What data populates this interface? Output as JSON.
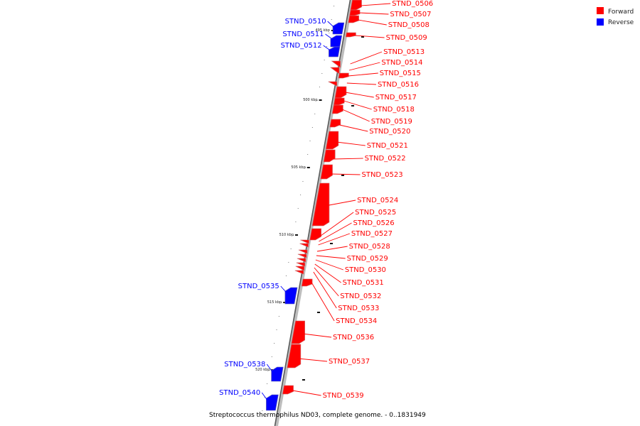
{
  "legend": {
    "forward_label": "Forward",
    "reverse_label": "Reverse",
    "forward_color": "#ff0000",
    "reverse_color": "#0000ff"
  },
  "caption": "Streptococcus thermophilus ND03, complete genome. - 0..1831949",
  "ticks": [
    "495 kbp",
    "500 kbp",
    "505 kbp",
    "510 kbp",
    "515 kbp",
    "520 kbp"
  ],
  "genes": [
    {
      "name": "STND_0506",
      "strand": "forward"
    },
    {
      "name": "STND_0507",
      "strand": "forward"
    },
    {
      "name": "STND_0508",
      "strand": "forward"
    },
    {
      "name": "STND_0509",
      "strand": "forward"
    },
    {
      "name": "STND_0510",
      "strand": "reverse"
    },
    {
      "name": "STND_0511",
      "strand": "reverse"
    },
    {
      "name": "STND_0512",
      "strand": "reverse"
    },
    {
      "name": "STND_0513",
      "strand": "forward"
    },
    {
      "name": "STND_0514",
      "strand": "forward"
    },
    {
      "name": "STND_0515",
      "strand": "forward"
    },
    {
      "name": "STND_0516",
      "strand": "forward"
    },
    {
      "name": "STND_0517",
      "strand": "forward"
    },
    {
      "name": "STND_0518",
      "strand": "forward"
    },
    {
      "name": "STND_0519",
      "strand": "forward"
    },
    {
      "name": "STND_0520",
      "strand": "forward"
    },
    {
      "name": "STND_0521",
      "strand": "forward"
    },
    {
      "name": "STND_0522",
      "strand": "forward"
    },
    {
      "name": "STND_0523",
      "strand": "forward"
    },
    {
      "name": "STND_0524",
      "strand": "forward"
    },
    {
      "name": "STND_0525",
      "strand": "forward"
    },
    {
      "name": "STND_0526",
      "strand": "forward"
    },
    {
      "name": "STND_0527",
      "strand": "forward"
    },
    {
      "name": "STND_0528",
      "strand": "forward"
    },
    {
      "name": "STND_0529",
      "strand": "forward"
    },
    {
      "name": "STND_0530",
      "strand": "forward"
    },
    {
      "name": "STND_0531",
      "strand": "forward"
    },
    {
      "name": "STND_0532",
      "strand": "forward"
    },
    {
      "name": "STND_0533",
      "strand": "forward"
    },
    {
      "name": "STND_0534",
      "strand": "forward"
    },
    {
      "name": "STND_0535",
      "strand": "reverse"
    },
    {
      "name": "STND_0536",
      "strand": "forward"
    },
    {
      "name": "STND_0537",
      "strand": "forward"
    },
    {
      "name": "STND_0538",
      "strand": "reverse"
    },
    {
      "name": "STND_0539",
      "strand": "forward"
    },
    {
      "name": "STND_0540",
      "strand": "reverse"
    }
  ]
}
